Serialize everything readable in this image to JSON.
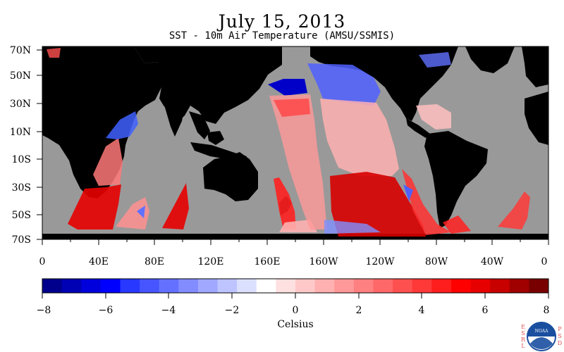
{
  "title": "July 15, 2013",
  "subtitle": "SST - 10m Air Temperature (AMSU/SSMIS)",
  "map": {
    "lat_labels": [
      "70N",
      "50N",
      "30N",
      "10N",
      "10S",
      "30S",
      "50S",
      "70S"
    ],
    "lon_labels": [
      "0",
      "40E",
      "80E",
      "120E",
      "160E",
      "160W",
      "120W",
      "80W",
      "40W",
      "0"
    ],
    "land_color": "#000000",
    "no_data_color": "#999999"
  },
  "colorbar": {
    "tick_labels": [
      "−8",
      "−6",
      "−4",
      "−2",
      "0",
      "2",
      "4",
      "6",
      "8"
    ],
    "unit_label": "Celsius",
    "colors": [
      "#00008c",
      "#0000b4",
      "#0000dc",
      "#0000ff",
      "#2838ff",
      "#4655ff",
      "#6470ff",
      "#828cff",
      "#a0a8ff",
      "#bec4ff",
      "#dce0ff",
      "#ffffff",
      "#ffe0e0",
      "#ffc8c8",
      "#ffb0b0",
      "#ff9898",
      "#ff8080",
      "#ff6868",
      "#ff5050",
      "#ff3838",
      "#ff1e1e",
      "#ff0000",
      "#e60000",
      "#c80000",
      "#a00000",
      "#780000"
    ]
  },
  "logo": {
    "text": "NOAA",
    "left_letters": "ESRL",
    "right_letters": "PSD"
  }
}
